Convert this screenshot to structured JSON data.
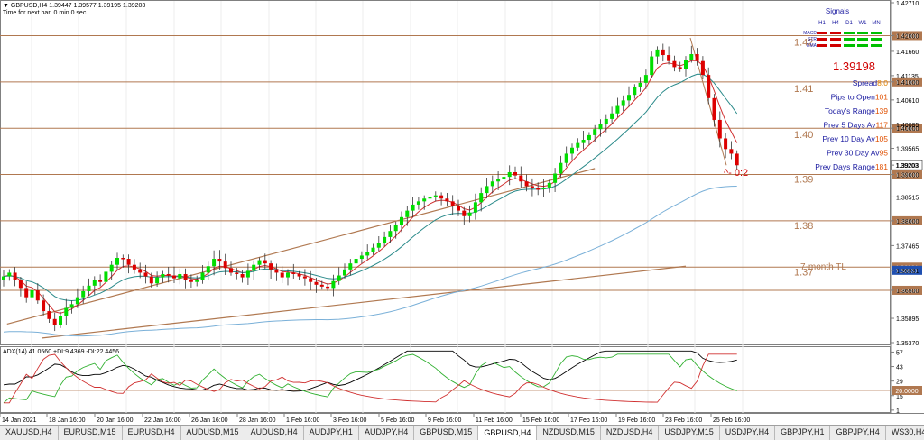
{
  "header": {
    "symbol_line": "▼ GBPUSD,H4  1.39447 1.39577 1.39195 1.39203",
    "timer": "Time for next bar: 0 min 0 sec"
  },
  "indicator_label": "ADX(14) 41.0560 +DI:9.4369 -DI:22.4456",
  "signals": {
    "title": "Signals",
    "timeframes": [
      "H1",
      "H4",
      "D1",
      "W1",
      "MN"
    ],
    "rows": [
      {
        "name": "MACD",
        "colors": [
          "#d00000",
          "#d00000",
          "#00c000",
          "#00c000",
          "#00c000"
        ]
      },
      {
        "name": "STR",
        "colors": [
          "#d00000",
          "#d00000",
          "#00c000",
          "#00c000",
          "#00c000"
        ]
      },
      {
        "name": "EMA",
        "colors": [
          "#d00000",
          "#d00000",
          "#00c000",
          "#00c000",
          "#00c000"
        ]
      }
    ]
  },
  "info": {
    "price": "1.39198",
    "rows": [
      {
        "label": "Spread",
        "value": "8.0",
        "value_color": "#e08000"
      },
      {
        "label": "Pips to Open",
        "value": "101",
        "value_color": "#e05000"
      },
      {
        "label": "Today's Range",
        "value": "139",
        "value_color": "#e05000"
      },
      {
        "label": "Prev 5 Days Av",
        "value": "117",
        "value_color": "#e05000"
      },
      {
        "label": "Prev 10 Day Av",
        "value": "105",
        "value_color": "#e05000"
      },
      {
        "label": "Prev 30 Day Av",
        "value": "95",
        "value_color": "#e05000"
      },
      {
        "label": "Prev Days Range",
        "value": "181",
        "value_color": "#e05000"
      }
    ],
    "countdown": "^- 0:2"
  },
  "annotations": {
    "tl_label": "7-month TL"
  },
  "tabs": [
    "XAUUSD,H4",
    "EURUSD,M15",
    "EURUSD,H4",
    "AUDUSD,M15",
    "AUDUSD,H4",
    "AUDJPY,H1",
    "AUDJPY,H4",
    "GBPUSD,M15",
    "GBPUSD,H4",
    "NZDUSD,M15",
    "NZDUSD,H4",
    "USDJPY,M15",
    "USDJPY,H4",
    "GBPJPY,H1",
    "GBPJPY,H4",
    "WS30,H4",
    "DAX30,H4",
    "JP225,Wee"
  ],
  "active_tab": "GBPUSD,H4",
  "colors": {
    "bull": "#00dd00",
    "bear": "#dd0000",
    "level_line": "#b07850",
    "ema_fast": "#d03030",
    "ema_mid": "#2a8a8a",
    "ema_slow": "#7ab0d8",
    "adx": "#000000",
    "plus_di": "#30b030",
    "minus_di": "#d03030"
  },
  "chart_data": {
    "type": "candlestick",
    "symbol": "GBPUSD",
    "timeframe": "H4",
    "ylim": [
      1.3537,
      1.4271
    ],
    "y_ticks": [
      "1.42710",
      "1.42000",
      "1.41660",
      "1.41135",
      "1.41000",
      "1.40610",
      "1.40085",
      "1.40000",
      "1.39565",
      "1.39203",
      "1.39000",
      "1.38515",
      "1.38000",
      "1.37465",
      "1.36931",
      "1.36500",
      "1.35895",
      "1.35370"
    ],
    "price_label_current": "1.39203",
    "x_ticks": [
      "14 Jan 2021",
      "18 Jan 16:00",
      "20 Jan 16:00",
      "22 Jan 16:00",
      "26 Jan 16:00",
      "28 Jan 16:00",
      "1 Feb 16:00",
      "3 Feb 16:00",
      "5 Feb 16:00",
      "9 Feb 16:00",
      "11 Feb 16:00",
      "15 Feb 16:00",
      "17 Feb 16:00",
      "19 Feb 16:00",
      "23 Feb 16:00",
      "25 Feb 16:00"
    ],
    "levels": [
      {
        "price": 1.42,
        "label": "1.42",
        "tag": "1.42000"
      },
      {
        "price": 1.41,
        "label": "1.41",
        "tag": "1.41000"
      },
      {
        "price": 1.4,
        "label": "1.40",
        "tag": "1.40000"
      },
      {
        "price": 1.39,
        "label": "1.39",
        "tag": "1.39000"
      },
      {
        "price": 1.38,
        "label": "1.38",
        "tag": "1.38000"
      },
      {
        "price": 1.37,
        "label": "1.37",
        "tag": "1.36931"
      },
      {
        "price": 1.365,
        "label": "",
        "tag": "1.36500"
      }
    ],
    "trendlines": [
      {
        "from": [
          0.6,
          1.3577
        ],
        "to": [
          104,
          1.3913
        ]
      },
      {
        "from": [
          6.8,
          1.3547
        ],
        "to": [
          120,
          1.3702
        ]
      }
    ],
    "closes": [
      1.368,
      1.3688,
      1.3672,
      1.3655,
      1.3635,
      1.365,
      1.3628,
      1.3605,
      1.3588,
      1.3575,
      1.3595,
      1.3612,
      1.362,
      1.3635,
      1.3648,
      1.366,
      1.3672,
      1.3668,
      1.369,
      1.3705,
      1.372,
      1.3718,
      1.3705,
      1.3695,
      1.3688,
      1.368,
      1.3665,
      1.3678,
      1.3685,
      1.3682,
      1.3676,
      1.3685,
      1.3672,
      1.3668,
      1.3672,
      1.3688,
      1.3702,
      1.3718,
      1.3712,
      1.3698,
      1.3688,
      1.3685,
      1.3678,
      1.3692,
      1.3705,
      1.3715,
      1.3708,
      1.3695,
      1.3688,
      1.3678,
      1.3688,
      1.3685,
      1.368,
      1.3676,
      1.3668,
      1.3662,
      1.3658,
      1.3655,
      1.367,
      1.3682,
      1.3695,
      1.3708,
      1.3718,
      1.3725,
      1.3732,
      1.3742,
      1.3752,
      1.3765,
      1.3778,
      1.3792,
      1.3808,
      1.3822,
      1.3835,
      1.3842,
      1.3848,
      1.3852,
      1.3855,
      1.3848,
      1.3842,
      1.3832,
      1.3822,
      1.381,
      1.3818,
      1.384,
      1.386,
      1.3875,
      1.3885,
      1.389,
      1.3895,
      1.3905,
      1.3898,
      1.3885,
      1.3875,
      1.387,
      1.3868,
      1.3872,
      1.3882,
      1.3902,
      1.3925,
      1.3945,
      1.3958,
      1.3968,
      1.3975,
      1.3985,
      1.3998,
      1.401,
      1.402,
      1.4032,
      1.4048,
      1.406,
      1.4072,
      1.4088,
      1.4098,
      1.4115,
      1.4155,
      1.417,
      1.4158,
      1.4145,
      1.4132,
      1.4128,
      1.4148,
      1.416,
      1.4145,
      1.4115,
      1.4065,
      1.4018,
      1.3978,
      1.3955,
      1.3945,
      1.392
    ]
  }
}
